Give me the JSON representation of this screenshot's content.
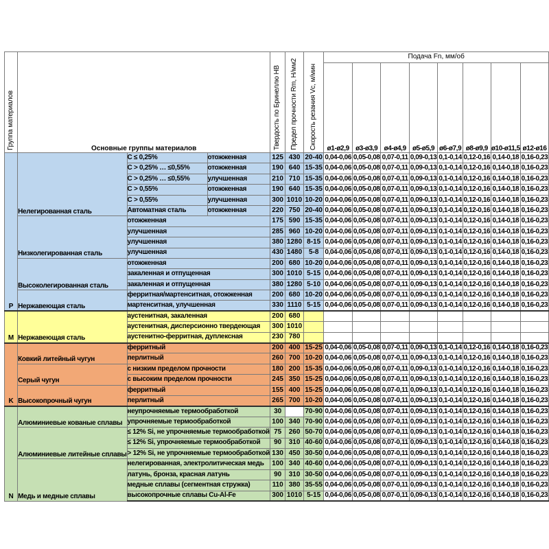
{
  "header": {
    "col_group": "Группа материалов",
    "col_main_groups": "Основные группы материалов",
    "col_hardness": "Твердость по Бринеллю HB",
    "col_strength": "Предел прочности Rm, Н/мм2",
    "col_speed": "Скорость резания Vc, м/мин",
    "feed_banner": "Подача Fn, мм/об",
    "feed_columns": [
      "ø1-ø2,9",
      "ø3-ø3,9",
      "ø4-ø4,9",
      "ø5-ø5,9",
      "ø6-ø7,9",
      "ø8-ø9,9",
      "ø10-ø11,5",
      "ø12-ø16"
    ]
  },
  "feed_values": [
    "0,04-0,06",
    "0,05-0,08",
    "0,07-0,11",
    "0,09-0,13",
    "0,1-0,14",
    "0,12-0,16",
    "0,14-0,18",
    "0,16-0,23"
  ],
  "sections": [
    {
      "letter": "P",
      "color": "#BDD6EE",
      "groups": [
        {
          "name": "Нелегированная сталь",
          "rows": [
            {
              "sub": "C ≤ 0,25%",
              "state": "отожженная",
              "hb": "125",
              "rm": "430",
              "vc": "20-40"
            },
            {
              "sub": "C > 0,25% … ≤0,55%",
              "state": "отожженная",
              "hb": "190",
              "rm": "640",
              "vc": "15-35"
            },
            {
              "sub": "C > 0,25% … ≤0,55%",
              "state": "улучшенная",
              "hb": "210",
              "rm": "710",
              "vc": "15-35"
            },
            {
              "sub": "C > 0,55%",
              "state": "отожженная",
              "hb": "190",
              "rm": "640",
              "vc": "15-35"
            },
            {
              "sub": "C > 0,55%",
              "state": "улучшенная",
              "hb": "300",
              "rm": "1010",
              "vc": "10-20"
            },
            {
              "sub": "Автоматная сталь",
              "state": "отожженная",
              "hb": "220",
              "rm": "750",
              "vc": "20-40"
            }
          ]
        },
        {
          "name": "Низколегированная сталь",
          "rows": [
            {
              "desc": "отожженная",
              "hb": "175",
              "rm": "590",
              "vc": "15-35"
            },
            {
              "desc": "улучшенная",
              "hb": "285",
              "rm": "960",
              "vc": "10-20"
            },
            {
              "desc": "улучшенная",
              "hb": "380",
              "rm": "1280",
              "vc": "8-15"
            },
            {
              "desc": "улучшенная",
              "hb": "430",
              "rm": "1480",
              "vc": "5-8"
            }
          ]
        },
        {
          "name": "Высоколегированная сталь",
          "rows": [
            {
              "desc": "отожженная",
              "hb": "200",
              "rm": "680",
              "vc": "10-20"
            },
            {
              "desc": "закаленная и отпущенная",
              "hb": "300",
              "rm": "1010",
              "vc": "5-15"
            },
            {
              "desc": "закаленная и отпущенная",
              "hb": "380",
              "rm": "1280",
              "vc": "5-10"
            }
          ]
        },
        {
          "name": "Нержавеющая сталь",
          "rows": [
            {
              "desc": "ферритная/мартенситная, отожженная",
              "hb": "200",
              "rm": "680",
              "vc": "10-20"
            },
            {
              "desc": "мартенситная, улучшенная",
              "hb": "330",
              "rm": "1110",
              "vc": "5-15"
            }
          ]
        }
      ]
    },
    {
      "letter": "M",
      "color": "#FFFF99",
      "groups": [
        {
          "name": "Нержавеющая сталь",
          "rows": [
            {
              "desc": "аустенитная, закаленная",
              "hb": "200",
              "rm": "680",
              "vc": "",
              "feeds": false
            },
            {
              "desc": "аустенитная, дисперсионно твердеющая",
              "hb": "300",
              "rm": "1010",
              "vc": "",
              "feeds": false
            },
            {
              "desc": "аустенитно-ферритная, дуплексная",
              "hb": "230",
              "rm": "780",
              "vc": "",
              "feeds": false
            }
          ]
        }
      ]
    },
    {
      "letter": "K",
      "color": "#F2A876",
      "groups": [
        {
          "name": "Ковкий литейный чугун",
          "rows": [
            {
              "desc": "ферритный",
              "hb": "200",
              "rm": "400",
              "vc": "15-25"
            },
            {
              "desc": "перлитный",
              "hb": "260",
              "rm": "700",
              "vc": "10-20"
            }
          ]
        },
        {
          "name": "Серый чугун",
          "rows": [
            {
              "desc": "с низким пределом прочности",
              "hb": "180",
              "rm": "200",
              "vc": "15-35"
            },
            {
              "desc": "с высоким пределом прочности",
              "hb": "245",
              "rm": "350",
              "vc": "15-25"
            }
          ]
        },
        {
          "name": "Высокопрочный чугун",
          "rows": [
            {
              "desc": "ферритный",
              "hb": "155",
              "rm": "400",
              "vc": "15-25"
            },
            {
              "desc": "перлитный",
              "hb": "265",
              "rm": "700",
              "vc": "10-20"
            }
          ]
        }
      ]
    },
    {
      "letter": "N",
      "color": "#C6E0B4",
      "groups": [
        {
          "name": "Алюминиевые кованые сплавы",
          "rows": [
            {
              "desc": "неупрочняемые термообработкой",
              "hb": "30",
              "rm": "",
              "rm_white": true,
              "vc": "70-90"
            },
            {
              "desc": "упрочняемые термообработкой",
              "hb": "100",
              "rm": "340",
              "vc": "70-90"
            }
          ]
        },
        {
          "name": "Алюминиевые литейные сплавы",
          "rows": [
            {
              "desc": "≤ 12% Si, не упрочняемые термообработкой",
              "hb": "75",
              "rm": "260",
              "vc": "50-70"
            },
            {
              "desc": "≤ 12% Si, упрочняемые термообработкой",
              "hb": "90",
              "rm": "310",
              "vc": "40-60"
            },
            {
              "desc": "> 12% Si, не упрочняемые термообработкой",
              "hb": "130",
              "rm": "450",
              "vc": "30-50"
            }
          ]
        },
        {
          "name": "Медь и медные сплавы",
          "rows": [
            {
              "desc": "нелегированная, электролитическая медь",
              "hb": "100",
              "rm": "340",
              "vc": "40-60"
            },
            {
              "desc": "латунь, бронза, красная латунь",
              "hb": "90",
              "rm": "310",
              "vc": "30-50"
            },
            {
              "desc": "медные сплавы (сегментная стружка)",
              "hb": "110",
              "rm": "380",
              "vc": "35-55"
            },
            {
              "desc": "высокопрочные сплавы Cu-Al-Fe",
              "hb": "300",
              "rm": "1010",
              "vc": "5-15"
            }
          ]
        }
      ]
    }
  ]
}
